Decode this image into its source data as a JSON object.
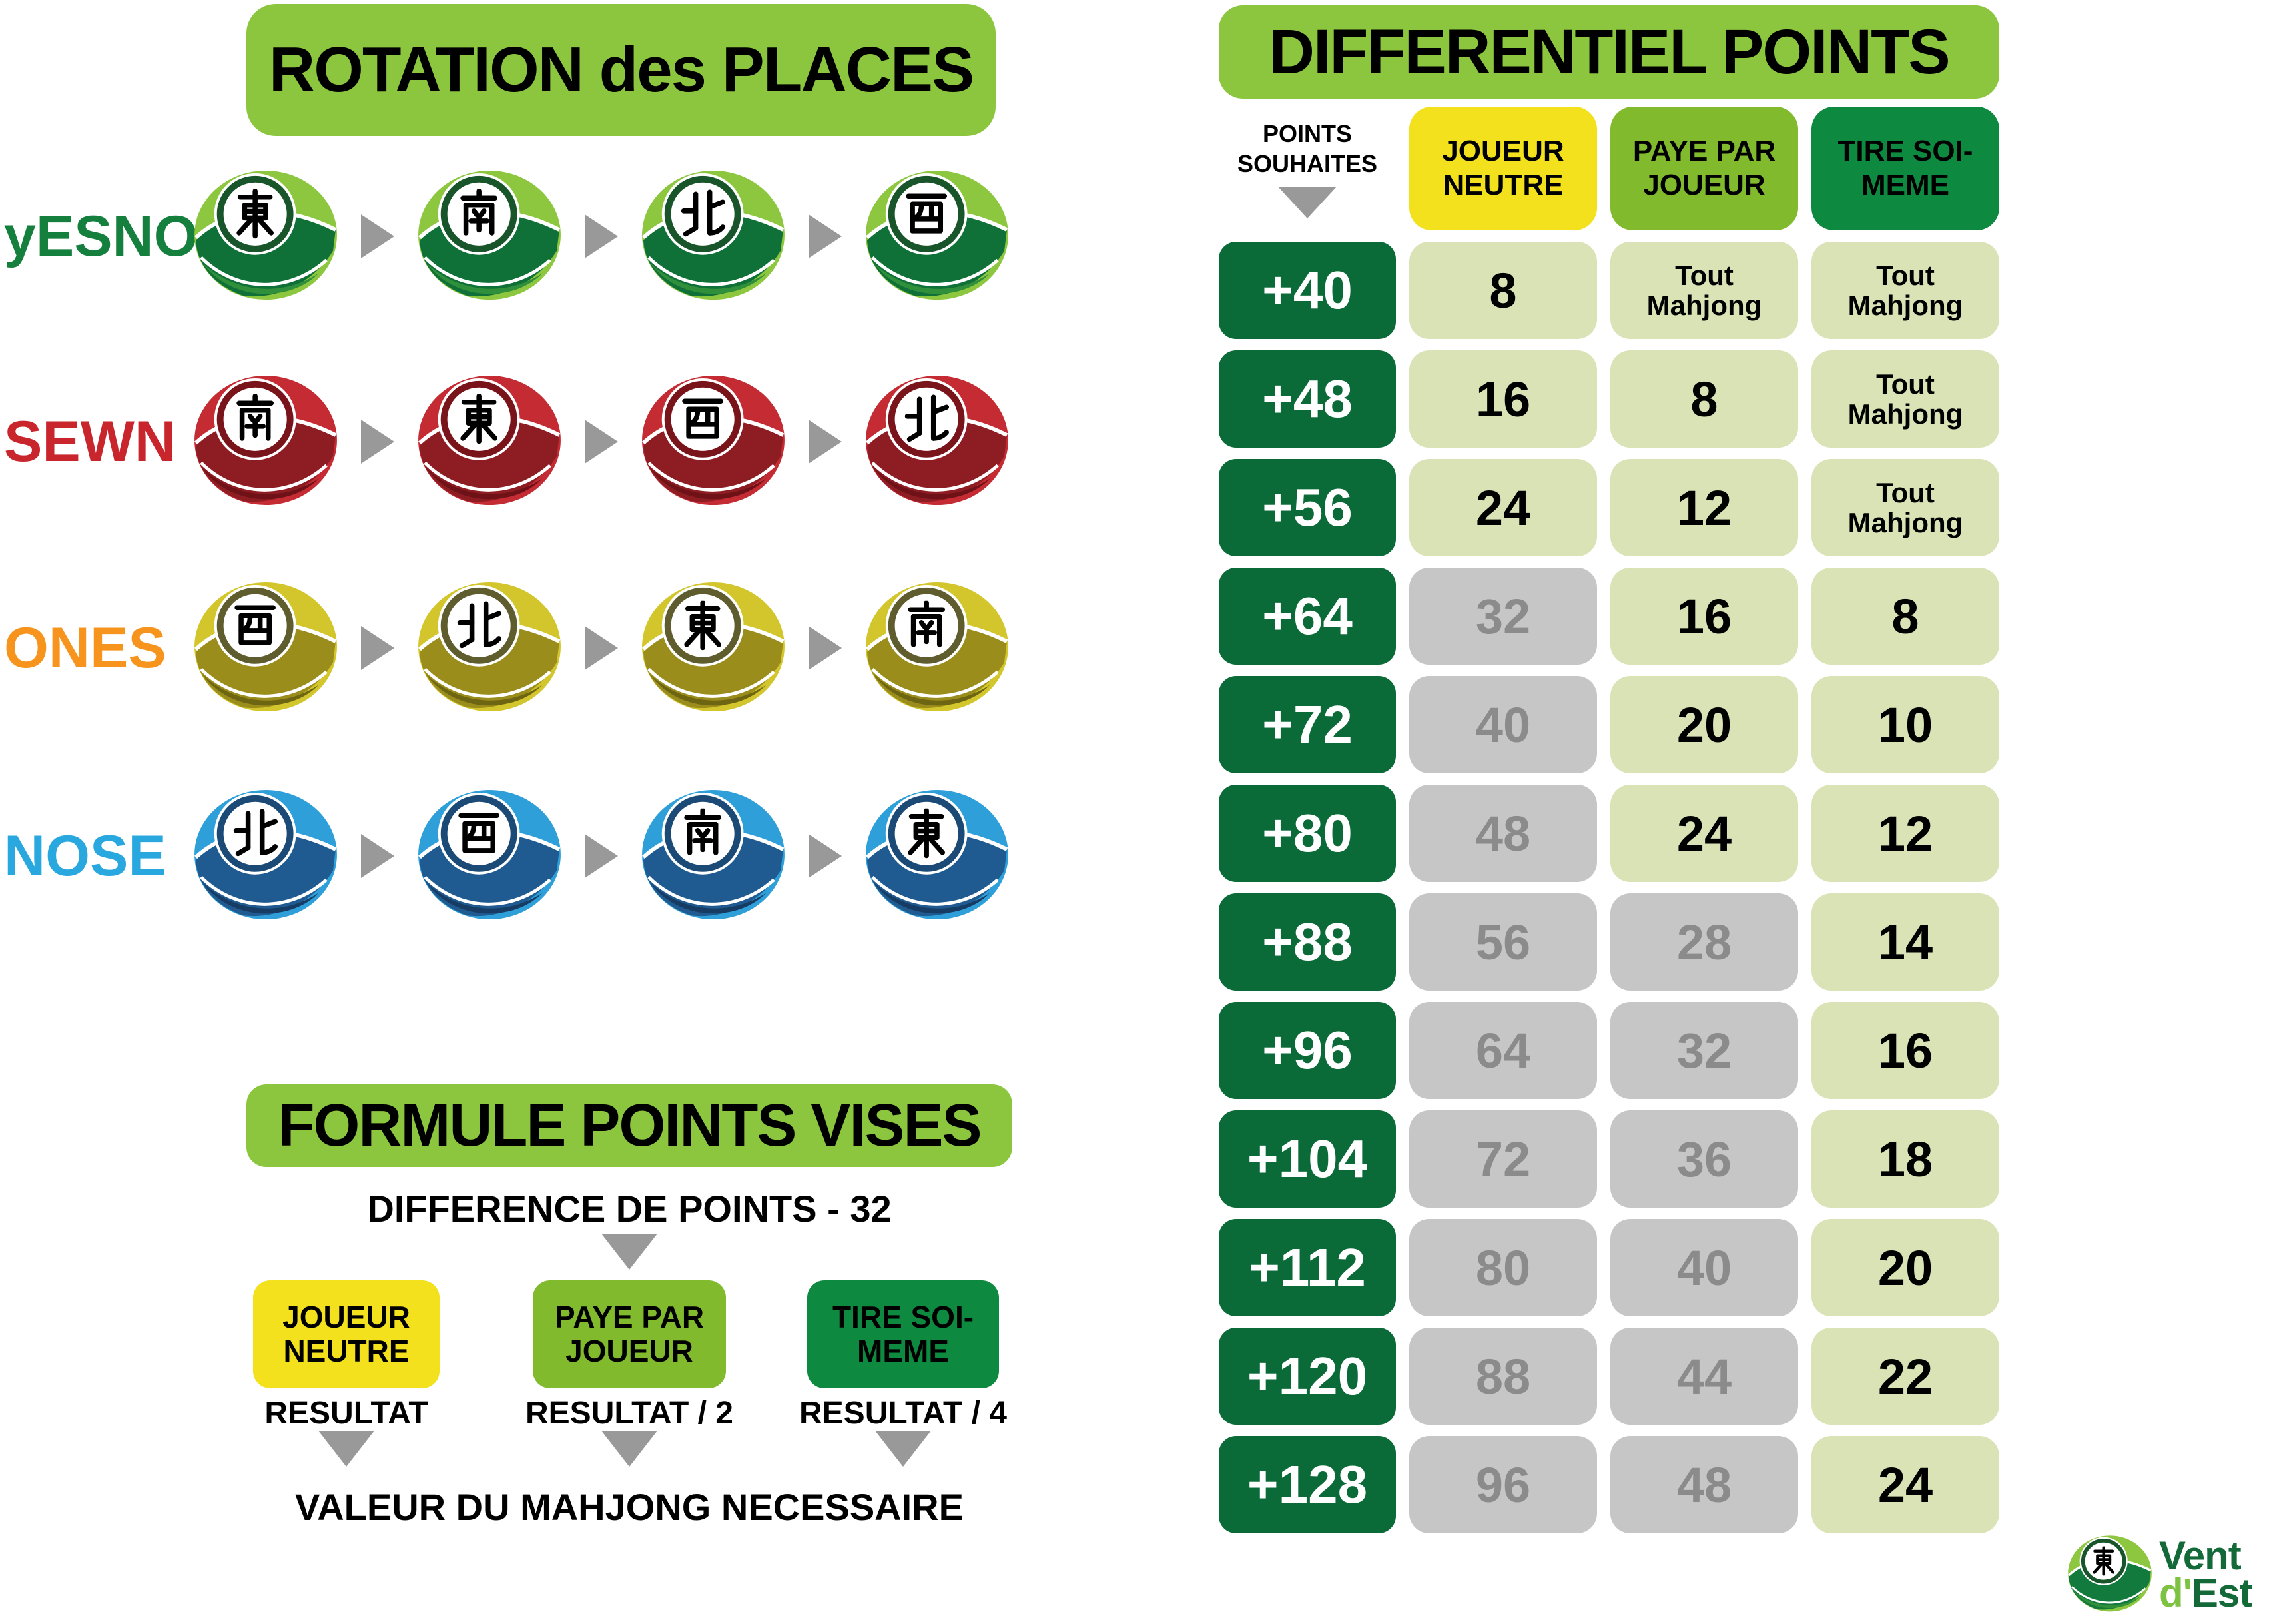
{
  "colors": {
    "banner-green": "#8CC63F",
    "dark-green": "#0B6B38",
    "pale-green": "#D9E3B6",
    "gray-cell": "#C6C6C6",
    "gray-text": "#8B8B8B",
    "arrow-gray": "#999999",
    "yellow": "#F2E11C",
    "mid-green": "#82BA2E",
    "box-dark-green": "#0E8A40",
    "logo-dark": "#136A38",
    "logo-light": "#7DC242"
  },
  "ball_schemes": {
    "green": {
      "light": "#8DC63F",
      "dark": "#0F7038",
      "deep": "#2F8F3A",
      "ring": "#19552B"
    },
    "red": {
      "light": "#C42B33",
      "dark": "#8E1C23",
      "deep": "#6F1217",
      "ring": "#7A141B"
    },
    "olive": {
      "light": "#D2C62C",
      "dark": "#9A8D1C",
      "deep": "#6E6512",
      "ring": "#5F5C2E"
    },
    "blue": {
      "light": "#2E9FD8",
      "dark": "#1F5A90",
      "deep": "#163C63",
      "ring": "#1B4A77"
    },
    "logo": {
      "light": "#8DC63F",
      "dark": "#127A3C",
      "deep": "#2F8F3A",
      "ring": "#19552B"
    }
  },
  "rotation": {
    "title": "ROTATION des PLACES",
    "wind_characters": {
      "east": "東",
      "south": "南",
      "west": "西",
      "north": "北"
    },
    "rows": [
      {
        "label": "yESNO",
        "color": "#157F3D",
        "scheme": "green",
        "winds": [
          "east",
          "south",
          "north",
          "west"
        ]
      },
      {
        "label": "SEWN",
        "color": "#C9252C",
        "scheme": "red",
        "winds": [
          "south",
          "east",
          "west",
          "north"
        ]
      },
      {
        "label": "ONES",
        "color": "#F7941E",
        "scheme": "olive",
        "winds": [
          "west",
          "north",
          "east",
          "south"
        ]
      },
      {
        "label": "NOSE",
        "color": "#29A8E0",
        "scheme": "blue",
        "winds": [
          "north",
          "west",
          "south",
          "east"
        ]
      }
    ]
  },
  "formule": {
    "title": "FORMULE POINTS VISES",
    "subtitle": "DIFFERENCE DE POINTS - 32",
    "columns": [
      {
        "label": "JOUEUR NEUTRE",
        "result": "RESULTAT",
        "bg": "#F2E11C"
      },
      {
        "label": "PAYE PAR JOUEUR",
        "result": "RESULTAT / 2",
        "bg": "#82BA2E"
      },
      {
        "label": "TIRE SOI-MEME",
        "result": "RESULTAT / 4",
        "bg": "#0E8A40"
      }
    ],
    "footer": "VALEUR DU MAHJONG NECESSAIRE"
  },
  "table": {
    "title": "DIFFERENTIEL POINTS",
    "row_header": "POINTS SOUHAITES",
    "columns": [
      {
        "label": "JOUEUR NEUTRE",
        "bg": "#F2E11C"
      },
      {
        "label": "PAYE PAR JOUEUR",
        "bg": "#82BA2E"
      },
      {
        "label": "TIRE SOI-MEME",
        "bg": "#0E8A40"
      }
    ],
    "rows": [
      {
        "points": "+40",
        "cells": [
          {
            "text": "8",
            "muted": false
          },
          {
            "text": "Tout Mahjong",
            "muted": false
          },
          {
            "text": "Tout Mahjong",
            "muted": false
          }
        ]
      },
      {
        "points": "+48",
        "cells": [
          {
            "text": "16",
            "muted": false
          },
          {
            "text": "8",
            "muted": false
          },
          {
            "text": "Tout Mahjong",
            "muted": false
          }
        ]
      },
      {
        "points": "+56",
        "cells": [
          {
            "text": "24",
            "muted": false
          },
          {
            "text": "12",
            "muted": false
          },
          {
            "text": "Tout Mahjong",
            "muted": false
          }
        ]
      },
      {
        "points": "+64",
        "cells": [
          {
            "text": "32",
            "muted": true
          },
          {
            "text": "16",
            "muted": false
          },
          {
            "text": "8",
            "muted": false
          }
        ]
      },
      {
        "points": "+72",
        "cells": [
          {
            "text": "40",
            "muted": true
          },
          {
            "text": "20",
            "muted": false
          },
          {
            "text": "10",
            "muted": false
          }
        ]
      },
      {
        "points": "+80",
        "cells": [
          {
            "text": "48",
            "muted": true
          },
          {
            "text": "24",
            "muted": false
          },
          {
            "text": "12",
            "muted": false
          }
        ]
      },
      {
        "points": "+88",
        "cells": [
          {
            "text": "56",
            "muted": true
          },
          {
            "text": "28",
            "muted": true
          },
          {
            "text": "14",
            "muted": false
          }
        ]
      },
      {
        "points": "+96",
        "cells": [
          {
            "text": "64",
            "muted": true
          },
          {
            "text": "32",
            "muted": true
          },
          {
            "text": "16",
            "muted": false
          }
        ]
      },
      {
        "points": "+104",
        "cells": [
          {
            "text": "72",
            "muted": true
          },
          {
            "text": "36",
            "muted": true
          },
          {
            "text": "18",
            "muted": false
          }
        ]
      },
      {
        "points": "+112",
        "cells": [
          {
            "text": "80",
            "muted": true
          },
          {
            "text": "40",
            "muted": true
          },
          {
            "text": "20",
            "muted": false
          }
        ]
      },
      {
        "points": "+120",
        "cells": [
          {
            "text": "88",
            "muted": true
          },
          {
            "text": "44",
            "muted": true
          },
          {
            "text": "22",
            "muted": false
          }
        ]
      },
      {
        "points": "+128",
        "cells": [
          {
            "text": "96",
            "muted": true
          },
          {
            "text": "48",
            "muted": true
          },
          {
            "text": "24",
            "muted": false
          }
        ]
      }
    ]
  },
  "logo": {
    "line1": "Vent",
    "line2_light": "d'",
    "line2_dark": "Est"
  }
}
